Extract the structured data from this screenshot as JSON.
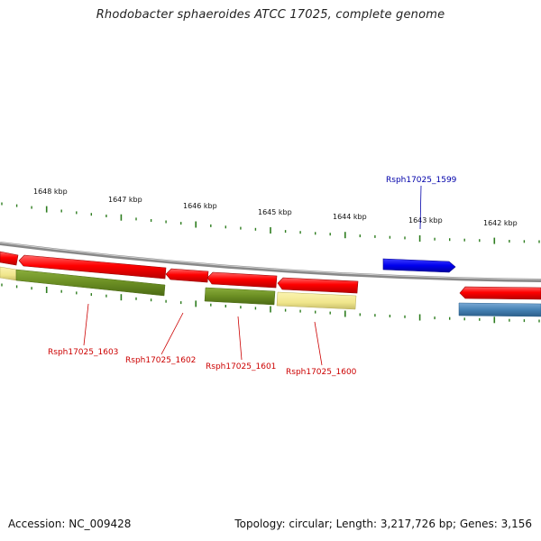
{
  "title": "Rhodobacter sphaeroides ATCC 17025, complete genome",
  "footer": {
    "accession": "Accession: NC_009428",
    "summary": "Topology: circular; Length: 3,217,726 bp; Genes: 3,156"
  },
  "colors": {
    "backbone": "#888888",
    "ticks": "#2e7d1f",
    "forward_gene": "#0000ee",
    "reverse_gene": "#ee0000",
    "olive_feature": "#6b8e23",
    "pale_feature": "#f0e68c",
    "blue_feature": "#4682b4"
  },
  "scale_labels": [
    "1648 kbp",
    "1647 kbp",
    "1646 kbp",
    "1645 kbp",
    "1644 kbp",
    "1643 kbp",
    "1642 kbp"
  ],
  "gene_labels": [
    {
      "text": "Rsph17025_1599",
      "color": "#0000aa"
    },
    {
      "text": "Rsph17025_1603",
      "color": "#cc0000"
    },
    {
      "text": "Rsph17025_1602",
      "color": "#cc0000"
    },
    {
      "text": "Rsph17025_1601",
      "color": "#cc0000"
    },
    {
      "text": "Rsph17025_1600",
      "color": "#cc0000"
    }
  ]
}
